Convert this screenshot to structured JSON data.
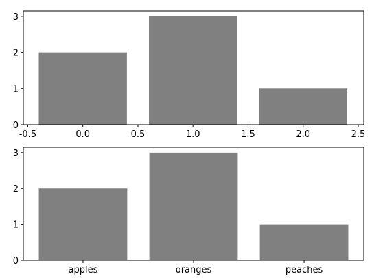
{
  "chart_data": [
    {
      "type": "bar",
      "x": [
        0,
        1,
        2
      ],
      "values": [
        2,
        3,
        1
      ],
      "bar_width": 0.8,
      "color": "#808080",
      "xlim": [
        -0.54,
        2.55
      ],
      "xticks": [
        -0.5,
        {
          "value": 0,
          "label": "0.0"
        },
        0.5,
        {
          "value": 1,
          "label": "1.0"
        },
        1.5,
        {
          "value": 2,
          "label": "2.0"
        },
        2.5
      ],
      "ylim": [
        0,
        3.15
      ],
      "yticks": [
        0,
        1,
        2,
        3
      ],
      "grid": false
    },
    {
      "type": "bar",
      "categories": [
        "apples",
        "oranges",
        "peaches"
      ],
      "values": [
        2,
        3,
        1
      ],
      "bar_width": 0.8,
      "color": "#808080",
      "ylim": [
        0,
        3.15
      ],
      "yticks": [
        0,
        1,
        2,
        3
      ],
      "grid": false
    }
  ]
}
